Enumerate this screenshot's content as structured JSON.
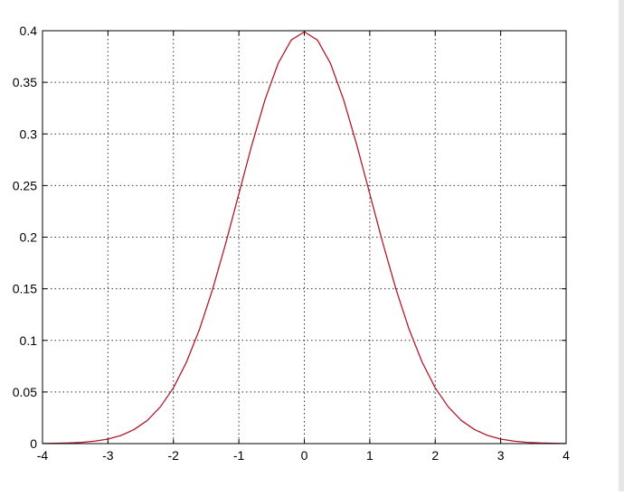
{
  "chart_data": {
    "type": "line",
    "title": "",
    "xlabel": "",
    "ylabel": "",
    "xlim": [
      -4,
      4
    ],
    "ylim": [
      0,
      0.4
    ],
    "grid": true,
    "grid_style": "dotted",
    "x_ticks": [
      "-4",
      "-3",
      "-2",
      "-1",
      "0",
      "1",
      "2",
      "3",
      "4"
    ],
    "y_ticks": [
      "0",
      "0.05",
      "0.1",
      "0.15",
      "0.2",
      "0.25",
      "0.3",
      "0.35",
      "0.4"
    ],
    "colors": {
      "line": "#b0192c",
      "axes": "#000000",
      "grid": "#333333",
      "background": "#ffffff"
    },
    "series": [
      {
        "x": [
          -4,
          -3.8,
          -3.6,
          -3.4,
          -3.2,
          -3,
          -2.8,
          -2.6,
          -2.4,
          -2.2,
          -2,
          -1.8,
          -1.6,
          -1.4,
          -1.2,
          -1,
          -0.8,
          -0.6,
          -0.4,
          -0.2,
          0,
          0.2,
          0.4,
          0.6,
          0.8,
          1,
          1.2,
          1.4,
          1.6,
          1.8,
          2,
          2.2,
          2.4,
          2.6,
          2.8,
          3,
          3.2,
          3.4,
          3.6,
          3.8,
          4
        ],
        "y": [
          0.0001,
          0.0003,
          0.0006,
          0.0012,
          0.0024,
          0.0044,
          0.0079,
          0.0136,
          0.0224,
          0.0355,
          0.054,
          0.079,
          0.1109,
          0.1497,
          0.1942,
          0.242,
          0.2897,
          0.3332,
          0.3683,
          0.391,
          0.3989,
          0.391,
          0.3683,
          0.3332,
          0.2897,
          0.242,
          0.1942,
          0.1497,
          0.1109,
          0.079,
          0.054,
          0.0355,
          0.0224,
          0.0136,
          0.0079,
          0.0044,
          0.0024,
          0.0012,
          0.0006,
          0.0003,
          0.0001
        ]
      }
    ]
  }
}
